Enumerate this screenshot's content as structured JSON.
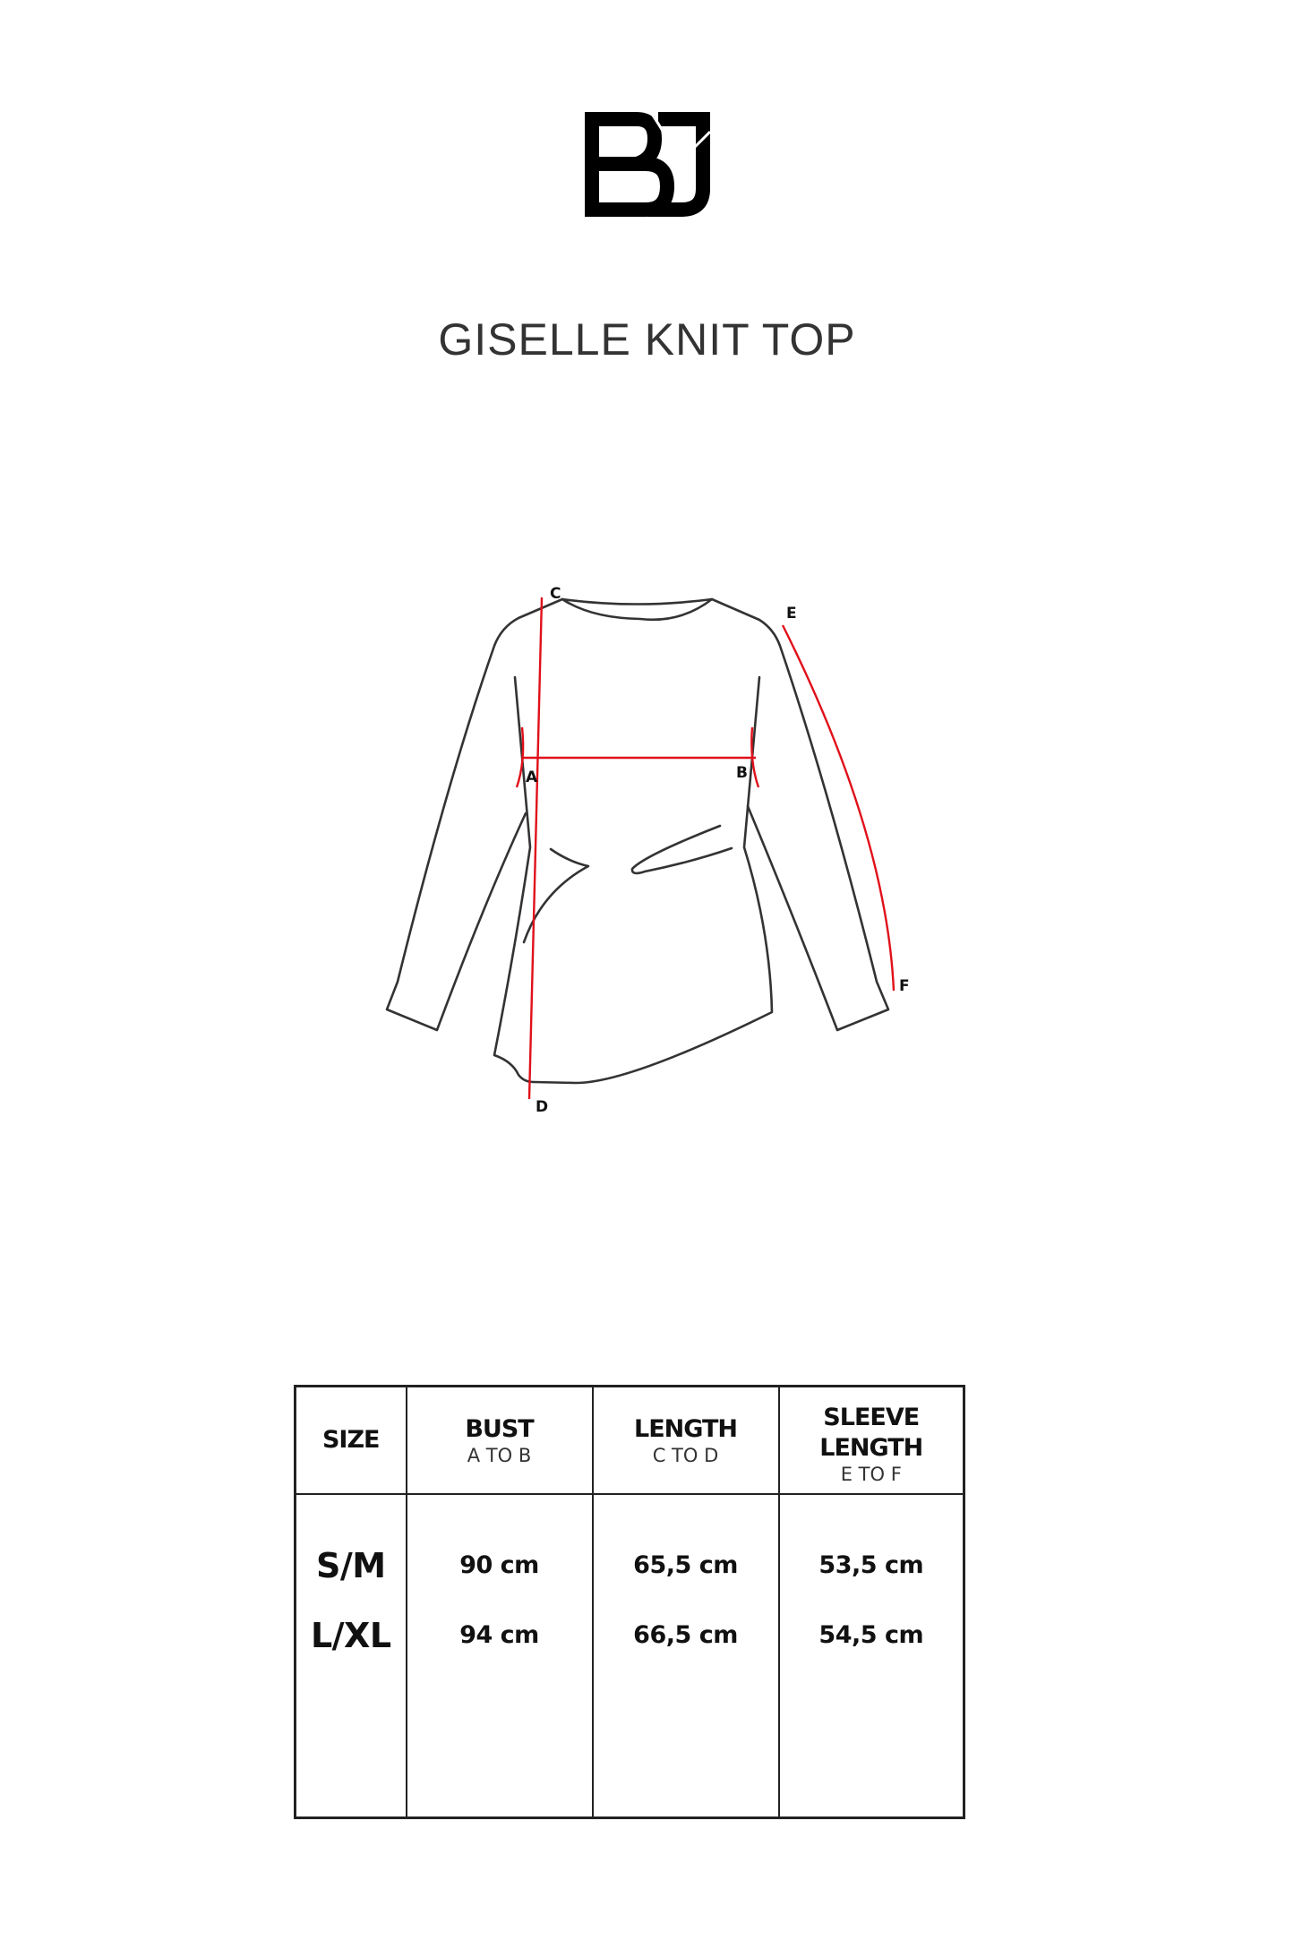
{
  "brand": {
    "logo_text": "BJ"
  },
  "title": "GISELLE KNIT TOP",
  "diagram": {
    "labels": {
      "a": "A",
      "b": "B",
      "c": "C",
      "d": "D",
      "e": "E",
      "f": "F"
    },
    "colors": {
      "outline": "#333333",
      "measure": "#e0101a"
    }
  },
  "table": {
    "headers": [
      {
        "title": "SIZE",
        "sub": ""
      },
      {
        "title": "BUST",
        "sub": "A TO B"
      },
      {
        "title": "LENGTH",
        "sub": "C TO D"
      },
      {
        "title": "SLEEVE LENGTH",
        "sub": "E TO F"
      }
    ],
    "sizes": [
      "S/M",
      "L/XL"
    ],
    "bust": [
      "90 cm",
      "94 cm"
    ],
    "length": [
      "65,5 cm",
      "66,5 cm"
    ],
    "sleeve": [
      "53,5 cm",
      "54,5 cm"
    ]
  }
}
